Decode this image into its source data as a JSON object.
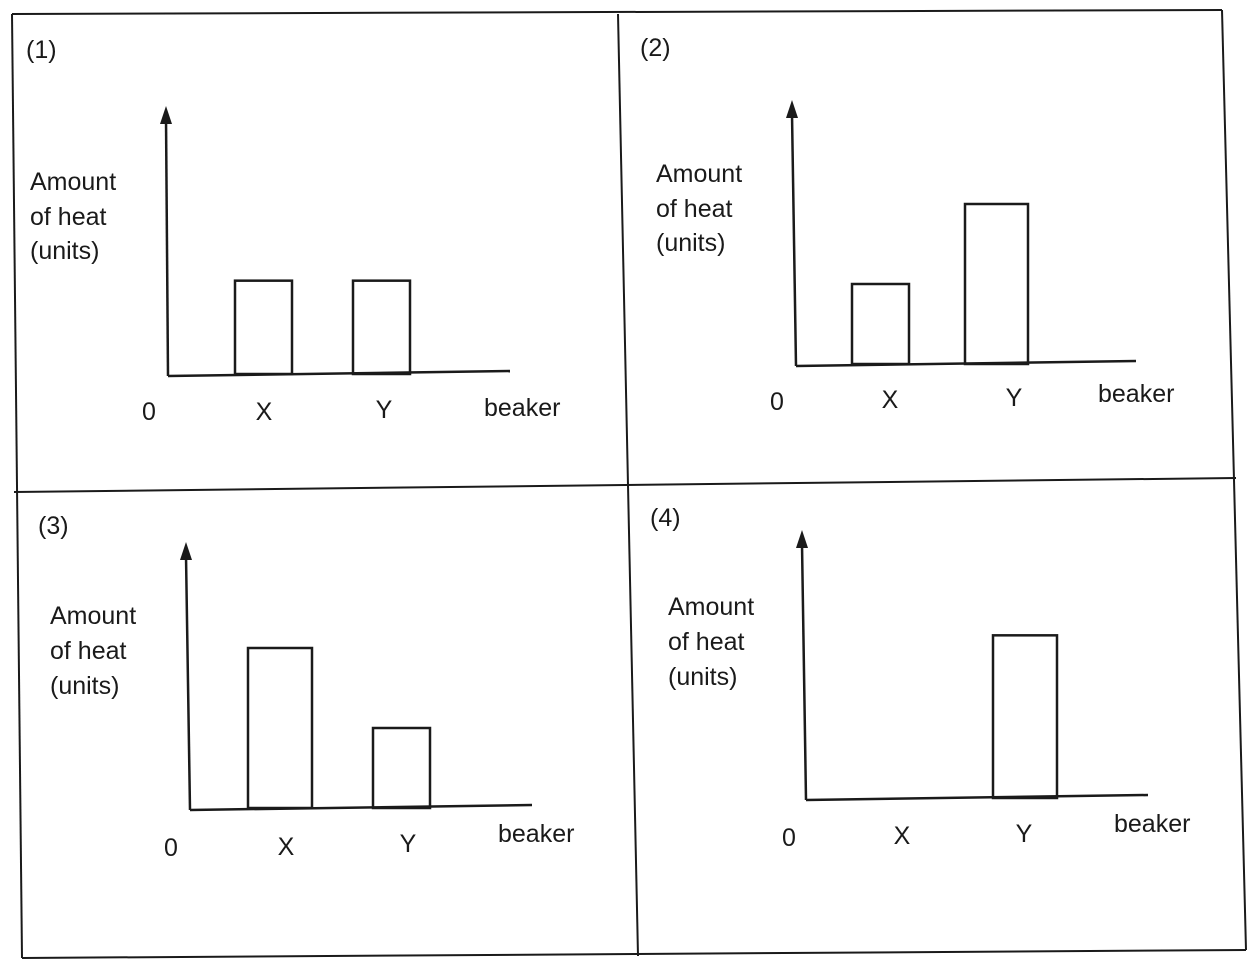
{
  "chart_data": [
    {
      "type": "bar",
      "panel_label": "(1)",
      "ylabel_lines": [
        "Amount",
        "of heat",
        "(units)"
      ],
      "origin_label": "0",
      "xlabel": "beaker",
      "categories": [
        "X",
        "Y"
      ],
      "values": [
        1,
        1
      ],
      "ylim": [
        0,
        3
      ]
    },
    {
      "type": "bar",
      "panel_label": "(2)",
      "ylabel_lines": [
        "Amount",
        "of heat",
        "(units)"
      ],
      "origin_label": "0",
      "xlabel": "beaker",
      "categories": [
        "X",
        "Y"
      ],
      "values": [
        1,
        2
      ],
      "ylim": [
        0,
        3
      ]
    },
    {
      "type": "bar",
      "panel_label": "(3)",
      "ylabel_lines": [
        "Amount",
        "of heat",
        "(units)"
      ],
      "origin_label": "0",
      "xlabel": "beaker",
      "categories": [
        "X",
        "Y"
      ],
      "values": [
        2,
        1
      ],
      "ylim": [
        0,
        3
      ]
    },
    {
      "type": "bar",
      "panel_label": "(4)",
      "ylabel_lines": [
        "Amount",
        "of heat",
        "(units)"
      ],
      "origin_label": "0",
      "xlabel": "beaker",
      "categories": [
        "X",
        "Y"
      ],
      "values": [
        0,
        2
      ],
      "ylim": [
        0,
        3
      ]
    }
  ]
}
